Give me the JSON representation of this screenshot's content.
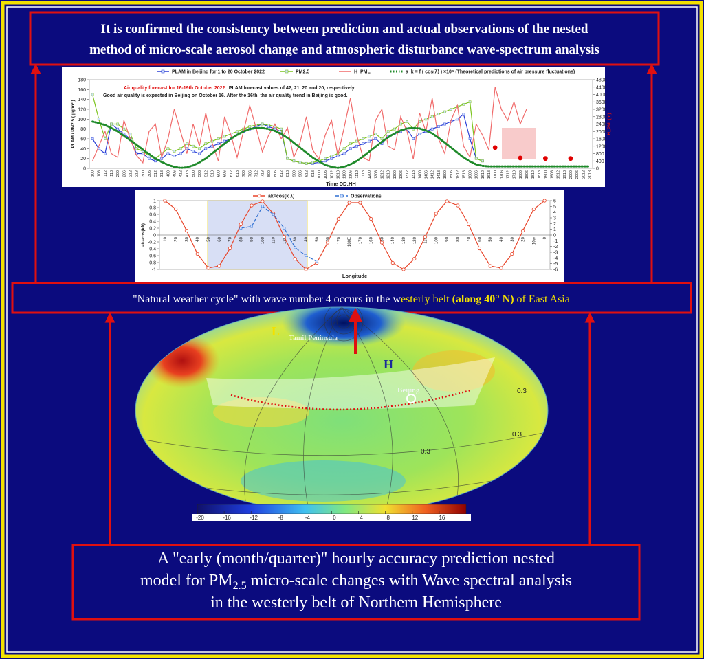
{
  "header": {
    "lines": [
      "It is confirmed the consistency between prediction and actual observations of the nested",
      "method of micro-scale aerosol change and atmospheric disturbance wave-spectrum analysis"
    ]
  },
  "chart_data": [
    {
      "type": "line",
      "x_label": "Time DD:HH",
      "y_label": "PLAM / PM2.5 ( μg/m³ )",
      "y2_label": "H_PML(m)",
      "annotation": {
        "title": "Air quality forecast for 16-19th October 2022:",
        "lines": [
          "PLAM forecast values of 42, 21, 20 and 20, respectively",
          "Good air quality is expected in Beijing on October 16. After the 16th, the air quality trend in Beijing is good."
        ]
      },
      "categories": [
        "100",
        "106",
        "112",
        "118",
        "200",
        "206",
        "212",
        "218",
        "300",
        "306",
        "312",
        "318",
        "400",
        "406",
        "412",
        "418",
        "500",
        "506",
        "512",
        "518",
        "600",
        "606",
        "612",
        "618",
        "700",
        "706",
        "712",
        "718",
        "800",
        "806",
        "812",
        "818",
        "900",
        "906",
        "912",
        "918",
        "1000",
        "1006",
        "1012",
        "1018",
        "1100",
        "1106",
        "1112",
        "1118",
        "1200",
        "1206",
        "1212",
        "1218",
        "1300",
        "1306",
        "1312",
        "1318",
        "1400",
        "1406",
        "1412",
        "1418",
        "1500",
        "1506",
        "1512",
        "1518",
        "1600",
        "1606",
        "1612",
        "1618",
        "1700",
        "1706",
        "1712",
        "1718",
        "1800",
        "1806",
        "1812",
        "1818",
        "1900",
        "1906",
        "1912",
        "1918",
        "2000",
        "2006",
        "2012",
        "2018"
      ],
      "ylim": [
        0,
        180
      ],
      "yticks": [
        0,
        20,
        40,
        60,
        80,
        100,
        120,
        140,
        160,
        180
      ],
      "y2lim": [
        0,
        4800
      ],
      "y2ticks": [
        0,
        400,
        800,
        1200,
        1600,
        2000,
        2400,
        2800,
        3200,
        3600,
        4000,
        4400,
        4800
      ],
      "series": [
        {
          "name": "PLAM in Beijing for 1 to 20 October 2022",
          "color": "#2a3fd6",
          "marker": "square",
          "values": [
            60,
            40,
            30,
            90,
            80,
            70,
            60,
            30,
            30,
            20,
            15,
            20,
            30,
            25,
            30,
            40,
            35,
            30,
            40,
            45,
            50,
            55,
            60,
            70,
            75,
            80,
            85,
            90,
            85,
            80,
            75,
            20,
            15,
            12,
            10,
            10,
            12,
            15,
            20,
            25,
            30,
            40,
            45,
            50,
            55,
            60,
            50,
            65,
            70,
            75,
            80,
            60,
            70,
            75,
            80,
            85,
            90,
            95,
            100,
            110,
            60,
            20,
            15,
            null,
            null,
            null,
            null,
            null,
            null,
            null,
            null,
            null,
            null,
            null,
            null,
            null,
            null,
            null,
            null,
            null
          ]
        },
        {
          "name": "PM2.5",
          "color": "#7cc41e",
          "marker": "square",
          "values": [
            150,
            100,
            60,
            90,
            90,
            80,
            70,
            40,
            35,
            25,
            20,
            30,
            40,
            35,
            40,
            50,
            45,
            40,
            50,
            55,
            60,
            65,
            70,
            75,
            80,
            85,
            88,
            90,
            88,
            85,
            80,
            20,
            15,
            12,
            10,
            12,
            15,
            20,
            25,
            30,
            40,
            50,
            55,
            60,
            65,
            70,
            60,
            75,
            80,
            90,
            95,
            80,
            95,
            100,
            105,
            110,
            115,
            120,
            125,
            130,
            135,
            20,
            15,
            null,
            null,
            null,
            null,
            null,
            null,
            null,
            null,
            null,
            null,
            null,
            null,
            null,
            null,
            null,
            null,
            null
          ]
        },
        {
          "name": "H_PML",
          "color": "#f06a6a",
          "axis": "y2",
          "values": [
            400,
            1200,
            2000,
            800,
            600,
            2600,
            1600,
            700,
            300,
            2000,
            2400,
            600,
            1600,
            3200,
            2000,
            800,
            2400,
            1200,
            3000,
            1400,
            400,
            2800,
            1800,
            600,
            2000,
            3400,
            2200,
            900,
            1800,
            2400,
            1600,
            2200,
            600,
            1400,
            2800,
            1000,
            500,
            1800,
            2600,
            700,
            2200,
            3800,
            1800,
            600,
            400,
            2600,
            3200,
            1200,
            1000,
            2800,
            2000,
            500,
            3000,
            2000,
            3800,
            1600,
            800,
            2600,
            3400,
            1200,
            600,
            2400,
            1800,
            1000,
            4400,
            3200,
            2600,
            3600,
            2400,
            3200,
            null,
            null,
            null,
            null,
            null,
            null,
            null,
            null,
            null,
            null
          ]
        },
        {
          "name": "a_k = f ( cos(λ) ) ×10⁴ (Theoretical predictions of air pressure fluctuations)",
          "color": "#1f8a2a",
          "style": "dotted",
          "values": [
            95,
            92,
            88,
            82,
            75,
            66,
            57,
            48,
            38,
            29,
            20,
            13,
            7,
            3,
            1,
            2,
            6,
            12,
            20,
            30,
            40,
            50,
            60,
            68,
            75,
            80,
            82,
            82,
            80,
            76,
            70,
            62,
            52,
            42,
            32,
            22,
            14,
            7,
            3,
            1,
            3,
            8,
            15,
            24,
            34,
            44,
            54,
            63,
            71,
            77,
            81,
            82,
            81,
            77,
            71,
            62,
            52,
            42,
            32,
            22,
            14,
            8,
            5,
            4,
            4,
            4,
            4,
            4,
            4,
            4,
            4,
            4,
            4,
            4,
            4,
            4,
            4,
            4,
            4,
            4
          ]
        },
        {
          "color": "#e00000",
          "marker": "circle",
          "line": false,
          "values": [
            null,
            null,
            null,
            null,
            null,
            null,
            null,
            null,
            null,
            null,
            null,
            null,
            null,
            null,
            null,
            null,
            null,
            null,
            null,
            null,
            null,
            null,
            null,
            null,
            null,
            null,
            null,
            null,
            null,
            null,
            null,
            null,
            null,
            null,
            null,
            null,
            null,
            null,
            null,
            null,
            null,
            null,
            null,
            null,
            null,
            null,
            null,
            null,
            null,
            null,
            null,
            null,
            null,
            null,
            null,
            null,
            null,
            null,
            null,
            null,
            null,
            null,
            null,
            null,
            42,
            null,
            null,
            null,
            21,
            null,
            null,
            null,
            20,
            null,
            null,
            null,
            20,
            null,
            null,
            null
          ]
        }
      ]
    },
    {
      "type": "line",
      "x_label": "Longitude",
      "y_label": "ak=cos(kλ)",
      "categories": [
        "10",
        "20",
        "30",
        "40",
        "50",
        "60",
        "70",
        "80",
        "90",
        "100",
        "110",
        "120",
        "130",
        "140",
        "150",
        "160",
        "170",
        "180E",
        "170",
        "160",
        "150",
        "140",
        "130",
        "120",
        "110",
        "100",
        "90",
        "80",
        "70",
        "60",
        "50",
        "40",
        "30",
        "20",
        "10w",
        "0"
      ],
      "ylim": [
        -1,
        1
      ],
      "yticks": [
        -1,
        -0.8,
        -0.6,
        -0.4,
        -0.2,
        0,
        0.2,
        0.4,
        0.6,
        0.8,
        1
      ],
      "y2lim": [
        -6,
        6
      ],
      "y2ticks": [
        -6,
        -5,
        -4,
        -3,
        -2,
        -1,
        0,
        1,
        2,
        3,
        4,
        5,
        6
      ],
      "series": [
        {
          "name": "ak=cos(k λ)",
          "color": "#e8452a",
          "marker": "circle",
          "values": [
            1,
            0.75,
            0.13,
            -0.55,
            -0.96,
            -0.9,
            -0.39,
            0.31,
            0.86,
            0.98,
            0.62,
            -0.05,
            -0.69,
            -1,
            -0.81,
            -0.22,
            0.47,
            0.94,
            0.94,
            0.47,
            -0.22,
            -0.81,
            -1,
            -0.69,
            -0.05,
            0.62,
            0.98,
            0.86,
            0.31,
            -0.39,
            -0.9,
            -0.96,
            -0.55,
            0.13,
            0.75,
            1
          ]
        },
        {
          "name": "Observations",
          "color": "#2f6fd0",
          "marker": "square",
          "style": "dashed",
          "axis": "y2",
          "values": [
            null,
            null,
            null,
            null,
            null,
            null,
            null,
            1.2,
            1.5,
            5,
            3.6,
            1.2,
            -2.2,
            -3.6,
            -4.6,
            null,
            null,
            null,
            null,
            null,
            null,
            null,
            null,
            null,
            null,
            null,
            null,
            null,
            null,
            null,
            null,
            null,
            null,
            null,
            null,
            null
          ]
        }
      ]
    }
  ],
  "banner": {
    "parts": [
      "\"Natural weather cycle\" with wave number 4 occurs in the w",
      "esterly belt ",
      "(along 40°  N)",
      " of East Asia"
    ]
  },
  "map": {
    "low": "L",
    "high": "H",
    "peninsula": "Tamil Peninsula",
    "city": "Beijing",
    "contours": [
      "0.3",
      "0.3",
      "0.3"
    ],
    "colorbar": {
      "lim": [
        -20,
        20
      ],
      "ticks": [
        -20,
        -16,
        -12,
        -8,
        -4,
        0,
        4,
        8,
        12,
        16
      ]
    }
  },
  "footer": {
    "line1": "A \"early (month/quarter)\" hourly accuracy prediction nested",
    "line2_pre": "model for PM",
    "line2_sub": "2.5",
    "line2_post": " micro-scale changes with Wave spectral analysis",
    "line3": "in the westerly belt of Northern Hemisphere"
  }
}
